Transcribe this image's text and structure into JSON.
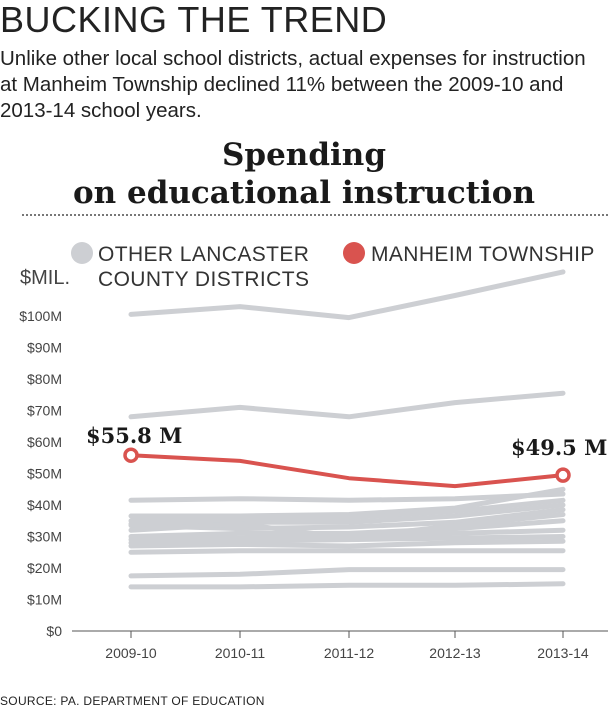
{
  "headline": "BUCKING THE TREND",
  "dek": "Unlike other local school districts, actual expenses for instruction at Manheim Township declined 11% between the 2009-10 and 2013-14 school years.",
  "source": "SOURCE: PA. DEPARTMENT OF EDUCATION",
  "chart_data": {
    "type": "line",
    "title_line1": "Spending",
    "title_line2": "on educational instruction",
    "unit_label": "$MIL.",
    "ylim": [
      0,
      100
    ],
    "y_ticks": [
      "$0",
      "$10M",
      "$20M",
      "$30M",
      "$40M",
      "$50M",
      "$60M",
      "$70M",
      "$80M",
      "$90M",
      "$100M"
    ],
    "x": [
      "2009-10",
      "2010-11",
      "2011-12",
      "2012-13",
      "2013-14"
    ],
    "legend": {
      "others_line1": "OTHER  LANCASTER",
      "others_line2": "COUNTY DISTRICTS",
      "manheim": "MANHEIM TOWNSHIP"
    },
    "colors": {
      "others": "#cdcfd3",
      "manheim": "#d9534f"
    },
    "callouts": {
      "start": "$55.8 M",
      "end": "$49.5 M"
    },
    "highlight": {
      "values": [
        55.8,
        54.0,
        48.5,
        46.0,
        49.5
      ]
    },
    "others": [
      {
        "values": [
          100.5,
          103.0,
          99.5,
          106.5,
          114.0
        ]
      },
      {
        "values": [
          68.0,
          71.0,
          68.0,
          72.5,
          75.5
        ]
      },
      {
        "values": [
          41.5,
          42.0,
          41.5,
          42.0,
          43.5
        ]
      },
      {
        "values": [
          36.5,
          36.5,
          37.0,
          39.0,
          45.0
        ]
      },
      {
        "values": [
          35.0,
          35.5,
          36.0,
          38.0,
          41.5
        ]
      },
      {
        "values": [
          34.0,
          34.5,
          34.5,
          36.5,
          40.0
        ]
      },
      {
        "values": [
          33.5,
          32.5,
          33.0,
          34.5,
          38.5
        ]
      },
      {
        "values": [
          32.0,
          34.0,
          29.5,
          33.5,
          37.0
        ]
      },
      {
        "values": [
          30.0,
          31.0,
          31.0,
          32.5,
          35.0
        ]
      },
      {
        "values": [
          29.0,
          29.5,
          30.0,
          31.0,
          32.0
        ]
      },
      {
        "values": [
          28.0,
          28.5,
          29.0,
          29.5,
          30.0
        ]
      },
      {
        "values": [
          27.0,
          27.5,
          27.0,
          28.0,
          28.5
        ]
      },
      {
        "values": [
          25.0,
          25.5,
          25.5,
          25.5,
          25.5
        ]
      },
      {
        "values": [
          17.5,
          18.0,
          19.5,
          19.5,
          19.5
        ]
      },
      {
        "values": [
          14.0,
          14.0,
          14.5,
          14.5,
          15.0
        ]
      }
    ]
  }
}
